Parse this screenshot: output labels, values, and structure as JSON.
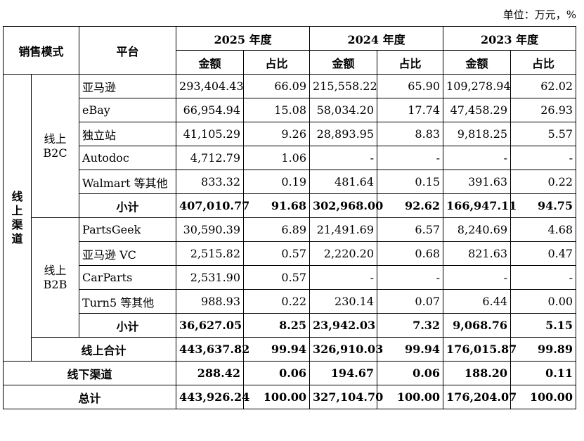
{
  "unit_label": "单位：万元，%",
  "headers": {
    "sales_mode": "销售模式",
    "platform": "平台",
    "years": [
      "2025 年度",
      "2024 年度",
      "2023 年度"
    ],
    "amount": "金额",
    "share": "占比"
  },
  "channels": {
    "online_chars": [
      "线",
      "上",
      "渠",
      "道"
    ],
    "b2c_label": "线上\nB2C",
    "b2b_label": "线上\nB2B"
  },
  "b2c_rows": [
    {
      "platform": "亚马逊",
      "v": [
        "293,404.43",
        "66.09",
        "215,558.22",
        "65.90",
        "109,278.94",
        "62.02"
      ]
    },
    {
      "platform": "eBay",
      "v": [
        "66,954.94",
        "15.08",
        "58,034.20",
        "17.74",
        "47,458.29",
        "26.93"
      ]
    },
    {
      "platform": "独立站",
      "v": [
        "41,105.29",
        "9.26",
        "28,893.95",
        "8.83",
        "9,818.25",
        "5.57"
      ]
    },
    {
      "platform": "Autodoc",
      "v": [
        "4,712.79",
        "1.06",
        "-",
        "-",
        "-",
        "-"
      ]
    },
    {
      "platform": "Walmart 等其他",
      "v": [
        "833.32",
        "0.19",
        "481.64",
        "0.15",
        "391.63",
        "0.22"
      ]
    }
  ],
  "b2c_subtotal": {
    "label": "小计",
    "v": [
      "407,010.77",
      "91.68",
      "302,968.00",
      "92.62",
      "166,947.11",
      "94.75"
    ]
  },
  "b2b_rows": [
    {
      "platform": "PartsGeek",
      "v": [
        "30,590.39",
        "6.89",
        "21,491.69",
        "6.57",
        "8,240.69",
        "4.68"
      ]
    },
    {
      "platform": "亚马逊 VC",
      "v": [
        "2,515.82",
        "0.57",
        "2,220.20",
        "0.68",
        "821.63",
        "0.47"
      ]
    },
    {
      "platform": "CarParts",
      "v": [
        "2,531.90",
        "0.57",
        "-",
        "-",
        "-",
        "-"
      ]
    },
    {
      "platform": "Turn5 等其他",
      "v": [
        "988.93",
        "0.22",
        "230.14",
        "0.07",
        "6.44",
        "0.00"
      ]
    }
  ],
  "b2b_subtotal": {
    "label": "小计",
    "v": [
      "36,627.05",
      "8.25",
      "23,942.03",
      "7.32",
      "9,068.76",
      "5.15"
    ]
  },
  "online_total": {
    "label": "线上合计",
    "v": [
      "443,637.82",
      "99.94",
      "326,910.03",
      "99.94",
      "176,015.87",
      "99.89"
    ]
  },
  "offline": {
    "label": "线下渠道",
    "v": [
      "288.42",
      "0.06",
      "194.67",
      "0.06",
      "188.20",
      "0.11"
    ]
  },
  "grand_total": {
    "label": "总计",
    "v": [
      "443,926.24",
      "100.00",
      "327,104.70",
      "100.00",
      "176,204.07",
      "100.00"
    ]
  }
}
